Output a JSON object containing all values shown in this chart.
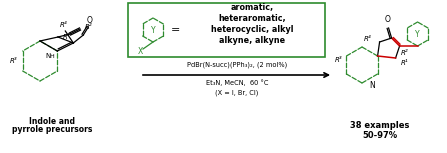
{
  "background_color": "#ffffff",
  "box_color": "#2e8b2e",
  "red_bond_color": "#cc0000",
  "green_dashed_color": "#2e8b2e",
  "box_text_lines": [
    "aromatic,",
    "heteraromatic,",
    "heterocyclic, alkyl",
    "alkyne, alkyne"
  ],
  "reagent_line1": "PdBr(N-succ)(PPh₃)₂, (2 mol%)",
  "reagent_line2": "Et₃N, MeCN,  60 °C",
  "reagent_line3": "(X = I, Br, Cl)",
  "left_label_line1": "Indole and",
  "left_label_line2": "pyrrole precursors",
  "right_label_line1": "38 examples",
  "right_label_line2": "50-97%",
  "figsize": [
    4.47,
    1.53
  ],
  "dpi": 100
}
